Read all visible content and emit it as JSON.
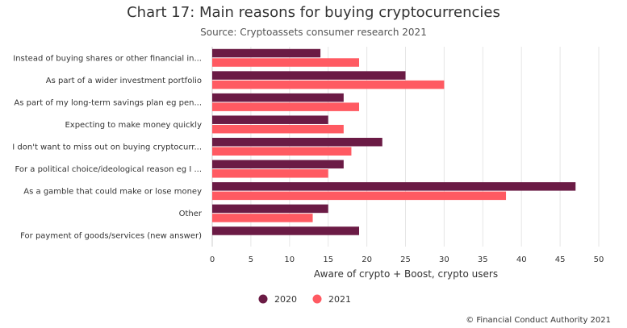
{
  "chart_data": {
    "type": "bar",
    "orientation": "horizontal",
    "title": "Chart 17: Main reasons for buying cryptocurrencies",
    "subtitle": "Source: Cryptoassets consumer research 2021",
    "xlabel": "Aware of crypto + Boost, crypto users",
    "ylabel": "",
    "xlim": [
      0,
      50
    ],
    "xticks": [
      0,
      5,
      10,
      15,
      20,
      25,
      30,
      35,
      40,
      45,
      50
    ],
    "grid": true,
    "legend_position": "bottom",
    "categories": [
      "Instead of buying shares or other financial in...",
      "As part of a wider investment portfolio",
      "As part of my long-term savings plan eg pen...",
      "Expecting to make money quickly",
      "I don't want to miss out on buying cryptocurr...",
      "For a political choice/ideological reason eg I ...",
      "As a gamble that could make or lose money",
      "Other",
      "For payment of goods/services (new answer)"
    ],
    "series": [
      {
        "name": "2020",
        "color": "#6b1b45",
        "values": [
          14,
          25,
          17,
          15,
          22,
          17,
          47,
          15,
          19
        ]
      },
      {
        "name": "2021",
        "color": "#ff5a62",
        "values": [
          19,
          30,
          19,
          17,
          18,
          15,
          38,
          13,
          null
        ]
      }
    ]
  },
  "credit": "© Financial Conduct Authority 2021"
}
